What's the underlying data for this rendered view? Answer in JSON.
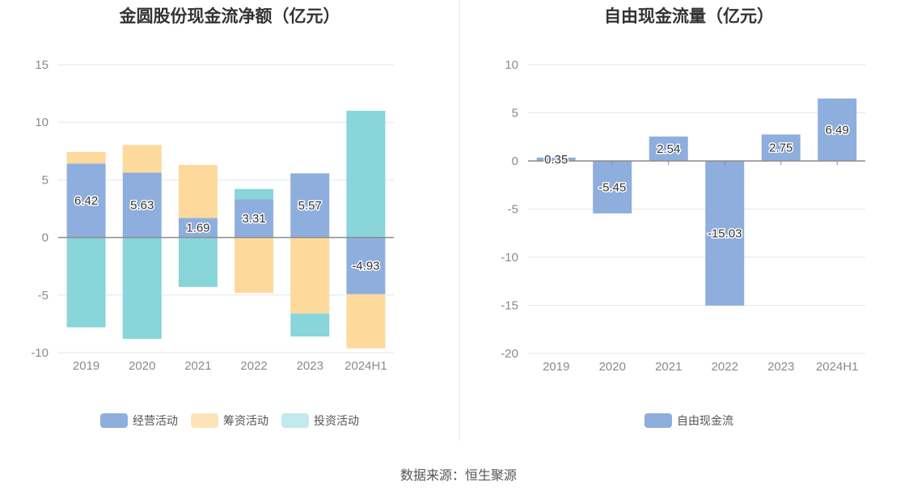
{
  "left_title": "金圆股份现金流净额（亿元）",
  "right_title": "自由现金流量（亿元）",
  "footer": "数据来源：恒生聚源",
  "colors": {
    "operating": "#8eaedd",
    "financing": "#fdd99c",
    "investing": "#88d5da",
    "fcf": "#8eaedd",
    "fin_legend": "#fde4b8",
    "inv_legend": "#c2e9eb"
  },
  "chart_data": [
    {
      "type": "bar",
      "stacked": true,
      "title": "金圆股份现金流净额（亿元）",
      "categories": [
        "2019",
        "2020",
        "2021",
        "2022",
        "2023",
        "2024H1"
      ],
      "ylim": [
        -10,
        15
      ],
      "yticks": [
        -10,
        -5,
        0,
        5,
        10,
        15
      ],
      "grid": true,
      "legend_position": "bottom",
      "series": [
        {
          "name": "经营活动",
          "values": [
            6.42,
            5.63,
            1.69,
            3.31,
            5.57,
            -4.93
          ],
          "labels": [
            "6.42",
            "5.63",
            "1.69",
            "3.31",
            "5.57",
            "-4.93"
          ]
        },
        {
          "name": "筹资活动",
          "values": [
            1.0,
            2.4,
            4.6,
            -4.8,
            -6.6,
            -4.7
          ]
        },
        {
          "name": "投资活动",
          "values": [
            -7.8,
            -8.8,
            -4.3,
            0.9,
            -2.0,
            11.0
          ]
        }
      ]
    },
    {
      "type": "bar",
      "title": "自由现金流量（亿元）",
      "categories": [
        "2019",
        "2020",
        "2021",
        "2022",
        "2023",
        "2024H1"
      ],
      "ylim": [
        -20,
        10
      ],
      "yticks": [
        -20,
        -15,
        -10,
        -5,
        0,
        5,
        10
      ],
      "grid": true,
      "legend_position": "bottom",
      "series": [
        {
          "name": "自由现金流",
          "values": [
            0.35,
            -5.45,
            2.54,
            -15.03,
            2.75,
            6.49
          ],
          "labels": [
            "0.35",
            "-5.45",
            "2.54",
            "-15.03",
            "2.75",
            "6.49"
          ]
        }
      ]
    }
  ]
}
